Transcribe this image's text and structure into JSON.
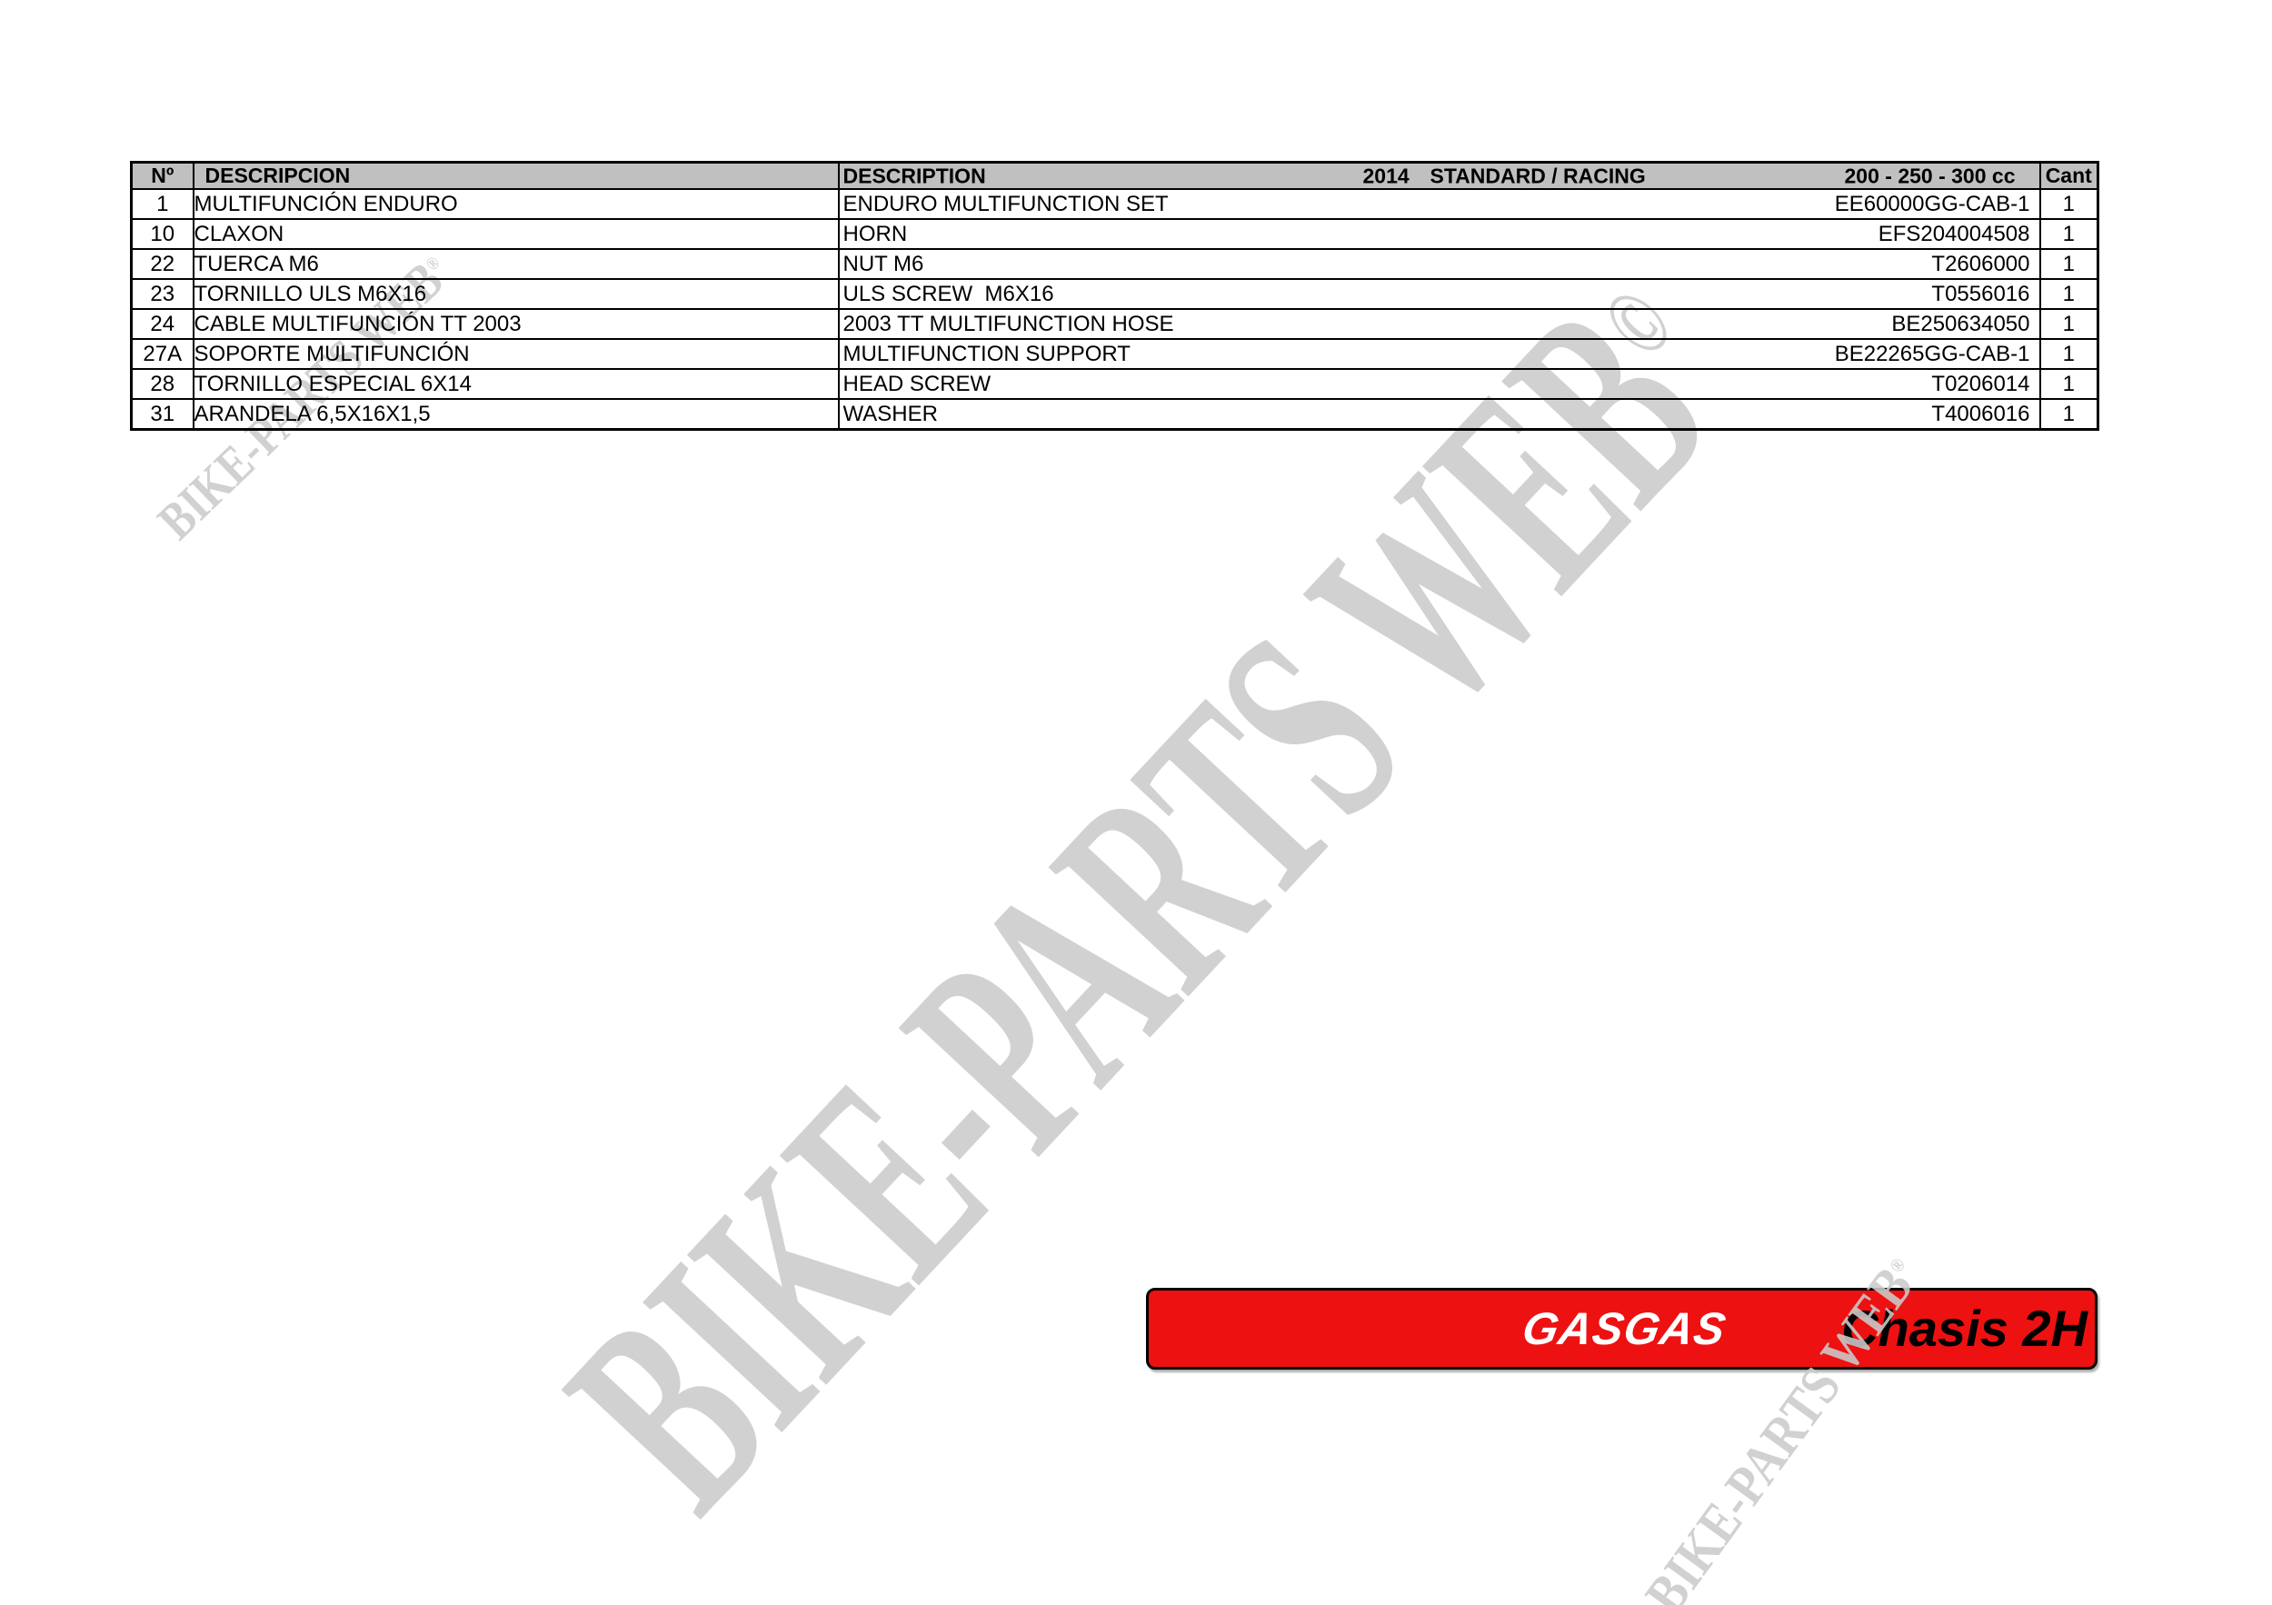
{
  "table": {
    "headers": {
      "num": "Nº",
      "descripcion": "DESCRIPCION",
      "description": "DESCRIPTION",
      "year": "2014",
      "variant": "STANDARD / RACING",
      "engine": "200 - 250 - 300 cc",
      "qty": "Cant"
    },
    "rows": [
      {
        "num": "1",
        "descripcion": "MULTIFUNCIÓN ENDURO",
        "description": "ENDURO MULTIFUNCTION SET",
        "part": "EE60000GG-CAB-1",
        "qty": "1"
      },
      {
        "num": "10",
        "descripcion": "CLAXON",
        "description": "HORN",
        "part": "EFS204004508",
        "qty": "1"
      },
      {
        "num": "22",
        "descripcion": "TUERCA M6",
        "description": "NUT M6",
        "part": "T2606000",
        "qty": "1"
      },
      {
        "num": "23",
        "descripcion": "TORNILLO ULS M6X16",
        "description": "ULS SCREW  M6X16",
        "part": "T0556016",
        "qty": "1"
      },
      {
        "num": "24",
        "descripcion": "CABLE MULTIFUNCIÓN TT 2003",
        "description": "2003 TT MULTIFUNCTION HOSE",
        "part": "BE250634050",
        "qty": "1"
      },
      {
        "num": "27A",
        "descripcion": "SOPORTE MULTIFUNCIÓN",
        "description": "MULTIFUNCTION SUPPORT",
        "part": "BE22265GG-CAB-1",
        "qty": "1"
      },
      {
        "num": "28",
        "descripcion": "TORNILLO ESPECIAL 6X14",
        "description": "HEAD SCREW",
        "part": "T0206014",
        "qty": "1"
      },
      {
        "num": "31",
        "descripcion": "ARANDELA 6,5X16X1,5",
        "description": "WASHER",
        "part": "T4006016",
        "qty": "1"
      }
    ]
  },
  "banner": {
    "brand": "GASGAS",
    "model": "Chasis 2H"
  },
  "watermarks": {
    "text": "BIKE-PARTS WEB",
    "center_symbol": "©",
    "corner_symbol": "®"
  },
  "colors": {
    "banner_red": "#ee1111",
    "header_gray": "#c0c0c0",
    "watermark_gray": "#cbcbcb",
    "text_black": "#000000"
  }
}
